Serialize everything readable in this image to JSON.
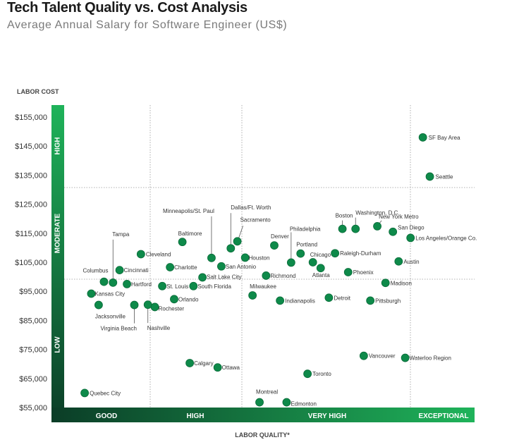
{
  "header": {
    "title": "Tech Talent Quality vs. Cost Analysis",
    "subtitle": "Average Annual Salary for Software Engineer (US$)"
  },
  "colors": {
    "point": "#0e8a4a",
    "point_stroke": "#0a6b39",
    "band_dark": "#0b3d27",
    "band_bright": "#1fb35a",
    "grid": "#999999"
  },
  "chart_data": {
    "type": "scatter",
    "title": "Tech Talent Quality vs. Cost Analysis",
    "subtitle": "Average Annual Salary for Software Engineer (US$)",
    "ylabel": "LABOR COST",
    "xlabel": "LABOR QUALITY*",
    "ylim": [
      54000,
      158000
    ],
    "xlim": [
      0,
      100
    ],
    "y_ticks": [
      "$155,000",
      "$145,000",
      "$135,000",
      "$125,000",
      "$115,000",
      "$105,000",
      "$95,000",
      "$85,000",
      "$75,000",
      "$65,000",
      "$55,000"
    ],
    "y_tick_values": [
      155000,
      145000,
      135000,
      125000,
      115000,
      105000,
      95000,
      85000,
      75000,
      65000,
      55000
    ],
    "x_categories": [
      "GOOD",
      "HIGH",
      "VERY HIGH",
      "EXCEPTIONAL"
    ],
    "y_bands": [
      "HIGH",
      "MODERATE",
      "LOW"
    ],
    "grid": true,
    "points": [
      {
        "name": "SF Bay Area",
        "x": 87.4,
        "y": 148000
      },
      {
        "name": "Seattle",
        "x": 89.1,
        "y": 134500
      },
      {
        "name": "Washington, D.C.",
        "x": 71.0,
        "y": 116500
      },
      {
        "name": "Boston",
        "x": 67.8,
        "y": 116500
      },
      {
        "name": "New York Metro",
        "x": 76.3,
        "y": 117400
      },
      {
        "name": "San Diego",
        "x": 80.1,
        "y": 115500
      },
      {
        "name": "Los Angeles/Orange Co.",
        "x": 84.4,
        "y": 113400
      },
      {
        "name": "Austin",
        "x": 81.5,
        "y": 105300
      },
      {
        "name": "Raleigh-Durham",
        "x": 66.0,
        "y": 108100
      },
      {
        "name": "Phoenix",
        "x": 69.2,
        "y": 101600
      },
      {
        "name": "Madison",
        "x": 78.3,
        "y": 97900
      },
      {
        "name": "Pittsburgh",
        "x": 74.6,
        "y": 91800
      },
      {
        "name": "Detroit",
        "x": 64.5,
        "y": 92800
      },
      {
        "name": "Chicago",
        "x": 60.6,
        "y": 105000
      },
      {
        "name": "Atlanta",
        "x": 62.5,
        "y": 103000
      },
      {
        "name": "Portland",
        "x": 57.6,
        "y": 108000
      },
      {
        "name": "Philadelphia",
        "x": 55.3,
        "y": 104900
      },
      {
        "name": "Denver",
        "x": 51.2,
        "y": 110800
      },
      {
        "name": "Richmond",
        "x": 49.2,
        "y": 100400
      },
      {
        "name": "Indianapolis",
        "x": 52.6,
        "y": 91800
      },
      {
        "name": "Milwaukee",
        "x": 45.9,
        "y": 93600
      },
      {
        "name": "Houston",
        "x": 44.1,
        "y": 106600
      },
      {
        "name": "Sacramento",
        "x": 42.2,
        "y": 112200
      },
      {
        "name": "Dallas/Ft. Worth",
        "x": 40.6,
        "y": 109800
      },
      {
        "name": "San Antonio",
        "x": 38.3,
        "y": 103600
      },
      {
        "name": "Minneapolis/St. Paul",
        "x": 35.9,
        "y": 106500
      },
      {
        "name": "Salt Lake City",
        "x": 33.7,
        "y": 99800
      },
      {
        "name": "South Florida",
        "x": 31.5,
        "y": 96800
      },
      {
        "name": "Baltimore",
        "x": 28.8,
        "y": 112000
      },
      {
        "name": "Charlotte",
        "x": 25.8,
        "y": 103300
      },
      {
        "name": "St. Louis",
        "x": 23.9,
        "y": 96800
      },
      {
        "name": "Orlando",
        "x": 26.8,
        "y": 92300
      },
      {
        "name": "Cleveland",
        "x": 18.7,
        "y": 107800
      },
      {
        "name": "Cincinnati",
        "x": 13.5,
        "y": 102300
      },
      {
        "name": "Tampa",
        "x": 11.9,
        "y": 98000
      },
      {
        "name": "Columbus",
        "x": 9.7,
        "y": 98300
      },
      {
        "name": "Hartford",
        "x": 15.3,
        "y": 97500
      },
      {
        "name": "Kansas City",
        "x": 6.6,
        "y": 94200
      },
      {
        "name": "Jacksonville",
        "x": 8.4,
        "y": 90300
      },
      {
        "name": "Virginia Beach",
        "x": 17.1,
        "y": 90300
      },
      {
        "name": "Nashville",
        "x": 20.4,
        "y": 90400
      },
      {
        "name": "Rochester",
        "x": 22.1,
        "y": 89600
      },
      {
        "name": "Calgary",
        "x": 30.6,
        "y": 70300
      },
      {
        "name": "Ottawa",
        "x": 37.4,
        "y": 68800
      },
      {
        "name": "Toronto",
        "x": 59.3,
        "y": 66600
      },
      {
        "name": "Vancouver",
        "x": 73.0,
        "y": 72800
      },
      {
        "name": "Waterloo Region",
        "x": 83.1,
        "y": 72100
      },
      {
        "name": "Quebec City",
        "x": 5.0,
        "y": 60000
      },
      {
        "name": "Montreal",
        "x": 47.6,
        "y": 56800
      },
      {
        "name": "Edmonton",
        "x": 54.2,
        "y": 56800
      }
    ]
  }
}
